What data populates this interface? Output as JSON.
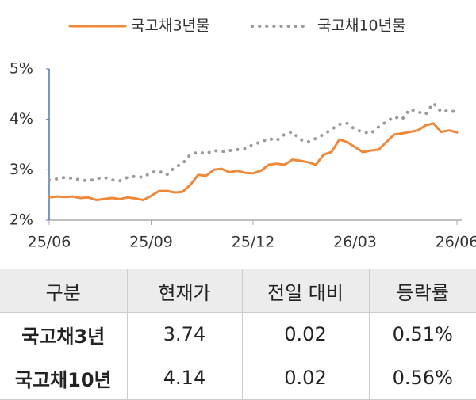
{
  "chart_data": {
    "type": "line",
    "categories": [
      "25/06",
      null,
      null,
      null,
      null,
      null,
      null,
      null,
      null,
      null,
      null,
      null,
      null,
      "25/09",
      null,
      null,
      null,
      null,
      null,
      null,
      null,
      null,
      null,
      null,
      null,
      null,
      "25/12",
      null,
      null,
      null,
      null,
      null,
      null,
      null,
      null,
      null,
      null,
      null,
      null,
      "26/03",
      null,
      null,
      null,
      null,
      null,
      null,
      null,
      null,
      null,
      null,
      null,
      null,
      "26/06"
    ],
    "series": [
      {
        "name": "국고채3년물",
        "color": "#f0883a",
        "style": "solid",
        "values": [
          2.45,
          2.47,
          2.46,
          2.47,
          2.44,
          2.45,
          2.4,
          2.42,
          2.44,
          2.42,
          2.45,
          2.43,
          2.4,
          2.48,
          2.58,
          2.58,
          2.55,
          2.56,
          2.7,
          2.9,
          2.88,
          3.0,
          3.02,
          2.95,
          2.98,
          2.94,
          2.93,
          2.98,
          3.1,
          3.12,
          3.1,
          3.2,
          3.18,
          3.15,
          3.1,
          3.3,
          3.35,
          3.6,
          3.55,
          3.45,
          3.35,
          3.38,
          3.4,
          3.55,
          3.7,
          3.72,
          3.75,
          3.78,
          3.88,
          3.92,
          3.75,
          3.78,
          3.74
        ]
      },
      {
        "name": "국고채10년물",
        "color": "#9a9a9a",
        "style": "dotted",
        "values": [
          2.8,
          2.82,
          2.85,
          2.83,
          2.8,
          2.78,
          2.82,
          2.85,
          2.8,
          2.78,
          2.85,
          2.87,
          2.85,
          2.95,
          2.97,
          2.9,
          3.05,
          3.12,
          3.3,
          3.35,
          3.32,
          3.38,
          3.36,
          3.38,
          3.4,
          3.42,
          3.5,
          3.55,
          3.62,
          3.58,
          3.7,
          3.75,
          3.6,
          3.55,
          3.62,
          3.7,
          3.8,
          3.9,
          3.92,
          3.8,
          3.75,
          3.72,
          3.85,
          3.95,
          4.05,
          4.0,
          4.2,
          4.15,
          4.1,
          4.32,
          4.15,
          4.18,
          4.14
        ]
      }
    ],
    "ylim": [
      2,
      5
    ],
    "yticks": [
      {
        "value": 2,
        "label": "2%"
      },
      {
        "value": 3,
        "label": "3%"
      },
      {
        "value": 4,
        "label": "4%"
      },
      {
        "value": 5,
        "label": "5%"
      }
    ],
    "legend": "top"
  },
  "table": {
    "header": [
      "구분",
      "현재가",
      "전일 대비",
      "등락률"
    ],
    "rows": [
      [
        "국고채3년",
        "3.74",
        "0.02",
        "0.51%"
      ],
      [
        "국고채10년",
        "4.14",
        "0.02",
        "0.56%"
      ]
    ]
  }
}
